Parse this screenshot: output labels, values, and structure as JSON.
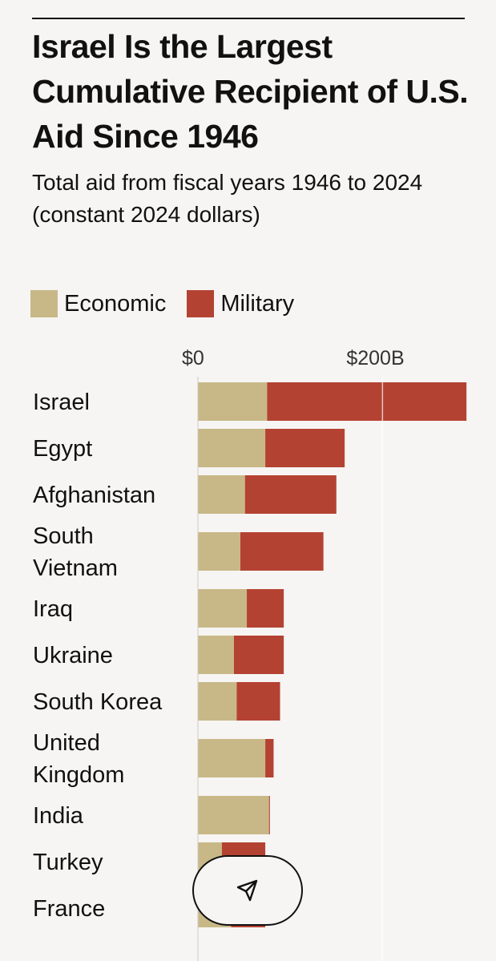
{
  "chart_data": {
    "type": "bar",
    "stacked": true,
    "orientation": "horizontal",
    "title": "Israel Is the Largest Cumulative Recipient of U.S. Aid Since 1946",
    "subtitle": "Total aid from fiscal years 1946 to 2024 (constant 2024 dollars)",
    "xlabel": "",
    "ylabel": "",
    "units": "billions of constant 2024 dollars",
    "xlim": [
      0,
      290
    ],
    "x_ticks": [
      {
        "value": 0,
        "label": "$0"
      },
      {
        "value": 200,
        "label": "$200B"
      }
    ],
    "grid": true,
    "legend_position": "top-left",
    "categories": [
      "Israel",
      "Egypt",
      "Afghanistan",
      "South Vietnam",
      "Iraq",
      "Ukraine",
      "South Korea",
      "United Kingdom",
      "India",
      "Turkey",
      "France"
    ],
    "category_lines": [
      [
        "Israel"
      ],
      [
        "Egypt"
      ],
      [
        "Afghanistan"
      ],
      [
        "South",
        "Vietnam"
      ],
      [
        "Iraq"
      ],
      [
        "Ukraine"
      ],
      [
        "South Korea"
      ],
      [
        "United",
        "Kingdom"
      ],
      [
        "India"
      ],
      [
        "Turkey"
      ],
      [
        "France"
      ]
    ],
    "series": [
      {
        "name": "Economic",
        "color": "#c8b887",
        "values": [
          75,
          73,
          51,
          46,
          53,
          39,
          42,
          73,
          77,
          26,
          36
        ]
      },
      {
        "name": "Military",
        "color": "#b44232",
        "values": [
          216,
          86,
          99,
          90,
          40,
          54,
          47,
          9,
          1,
          47,
          37
        ]
      }
    ]
  },
  "ui": {
    "share_icon": "send-icon"
  }
}
